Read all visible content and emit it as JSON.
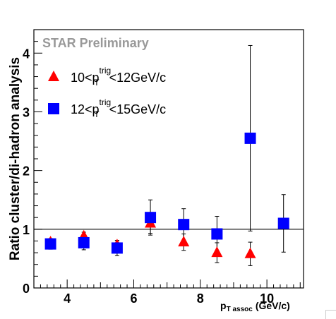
{
  "chart_data": {
    "type": "scatter",
    "watermark": "STAR Preliminary",
    "ylabel": "Ratio cluster/di-hadron analysis",
    "xlabel": {
      "main": "p",
      "sub": "T assoc",
      "unit": "(GeV/c)"
    },
    "xlim": [
      3.0,
      11.1
    ],
    "ylim": [
      0,
      4.4
    ],
    "x_ticks": [
      4,
      6,
      8,
      10
    ],
    "y_ticks": [
      0,
      1,
      2,
      3,
      4
    ],
    "reference_line": 1,
    "legend_position": "top-left",
    "series": [
      {
        "marker": "triangle",
        "color": "#ff0000",
        "legend": {
          "pre": "10<p",
          "sub": "T",
          "sup": "trig",
          "post": "<12GeV/c"
        },
        "points": [
          {
            "x": 3.5,
            "y": 0.78,
            "err": 0.06
          },
          {
            "x": 4.5,
            "y": 0.88,
            "err": 0.07
          },
          {
            "x": 5.5,
            "y": 0.73,
            "err": 0.08
          },
          {
            "x": 6.5,
            "y": 1.1,
            "err": 0.17
          },
          {
            "x": 7.5,
            "y": 0.78,
            "err": 0.14
          },
          {
            "x": 8.5,
            "y": 0.6,
            "err": 0.17
          },
          {
            "x": 9.5,
            "y": 0.58,
            "err": 0.2
          }
        ]
      },
      {
        "marker": "square",
        "color": "#0000ff",
        "legend": {
          "pre": "12<p",
          "sub": "T",
          "sup": "trig",
          "post": "<15GeV/c"
        },
        "points": [
          {
            "x": 3.5,
            "y": 0.75,
            "err": 0.09
          },
          {
            "x": 4.5,
            "y": 0.77,
            "err": 0.12
          },
          {
            "x": 5.5,
            "y": 0.68,
            "err": 0.13
          },
          {
            "x": 6.5,
            "y": 1.2,
            "err": 0.3
          },
          {
            "x": 7.5,
            "y": 1.08,
            "err": 0.27
          },
          {
            "x": 8.5,
            "y": 0.92,
            "err": 0.3
          },
          {
            "x": 9.5,
            "y": 2.55,
            "err": 1.58
          },
          {
            "x": 10.5,
            "y": 1.1,
            "err": 0.49
          }
        ]
      }
    ]
  }
}
